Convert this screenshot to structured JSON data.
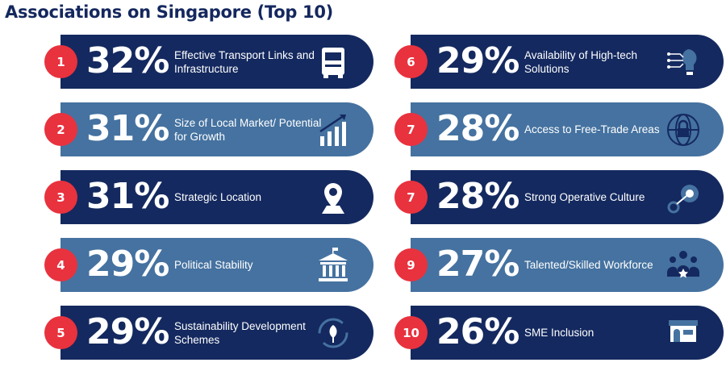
{
  "title": "Associations on Singapore (Top 10)",
  "colors": {
    "dark": "#14295f",
    "light": "#4572a0",
    "badge": "#e8323e"
  },
  "items": [
    {
      "rank": "1",
      "percent": "32%",
      "label": "Effective Transport Links and Infrastructure",
      "icon": "truck-icon",
      "style": "dark"
    },
    {
      "rank": "2",
      "percent": "31%",
      "label": "Size of Local Market/ Potential for Growth",
      "icon": "growth-chart-icon",
      "style": "light"
    },
    {
      "rank": "3",
      "percent": "31%",
      "label": "Strategic Location",
      "icon": "location-pin-icon",
      "style": "dark"
    },
    {
      "rank": "4",
      "percent": "29%",
      "label": "Political Stability",
      "icon": "government-building-icon",
      "style": "light"
    },
    {
      "rank": "5",
      "percent": "29%",
      "label": "Sustainability Development Schemes",
      "icon": "leaf-recycle-icon",
      "style": "dark"
    },
    {
      "rank": "6",
      "percent": "29%",
      "label": "Availability of High-tech Solutions",
      "icon": "tech-lightbulb-icon",
      "style": "dark"
    },
    {
      "rank": "7",
      "percent": "28%",
      "label": "Access to Free-Trade Areas",
      "icon": "globe-lock-icon",
      "style": "light"
    },
    {
      "rank": "7",
      "percent": "28%",
      "label": "Strong Operative Culture",
      "icon": "gears-icon",
      "style": "dark"
    },
    {
      "rank": "9",
      "percent": "27%",
      "label": "Talented/Skilled Workforce",
      "icon": "team-star-icon",
      "style": "light"
    },
    {
      "rank": "10",
      "percent": "26%",
      "label": "SME Inclusion",
      "icon": "storefront-icon",
      "style": "dark"
    }
  ]
}
